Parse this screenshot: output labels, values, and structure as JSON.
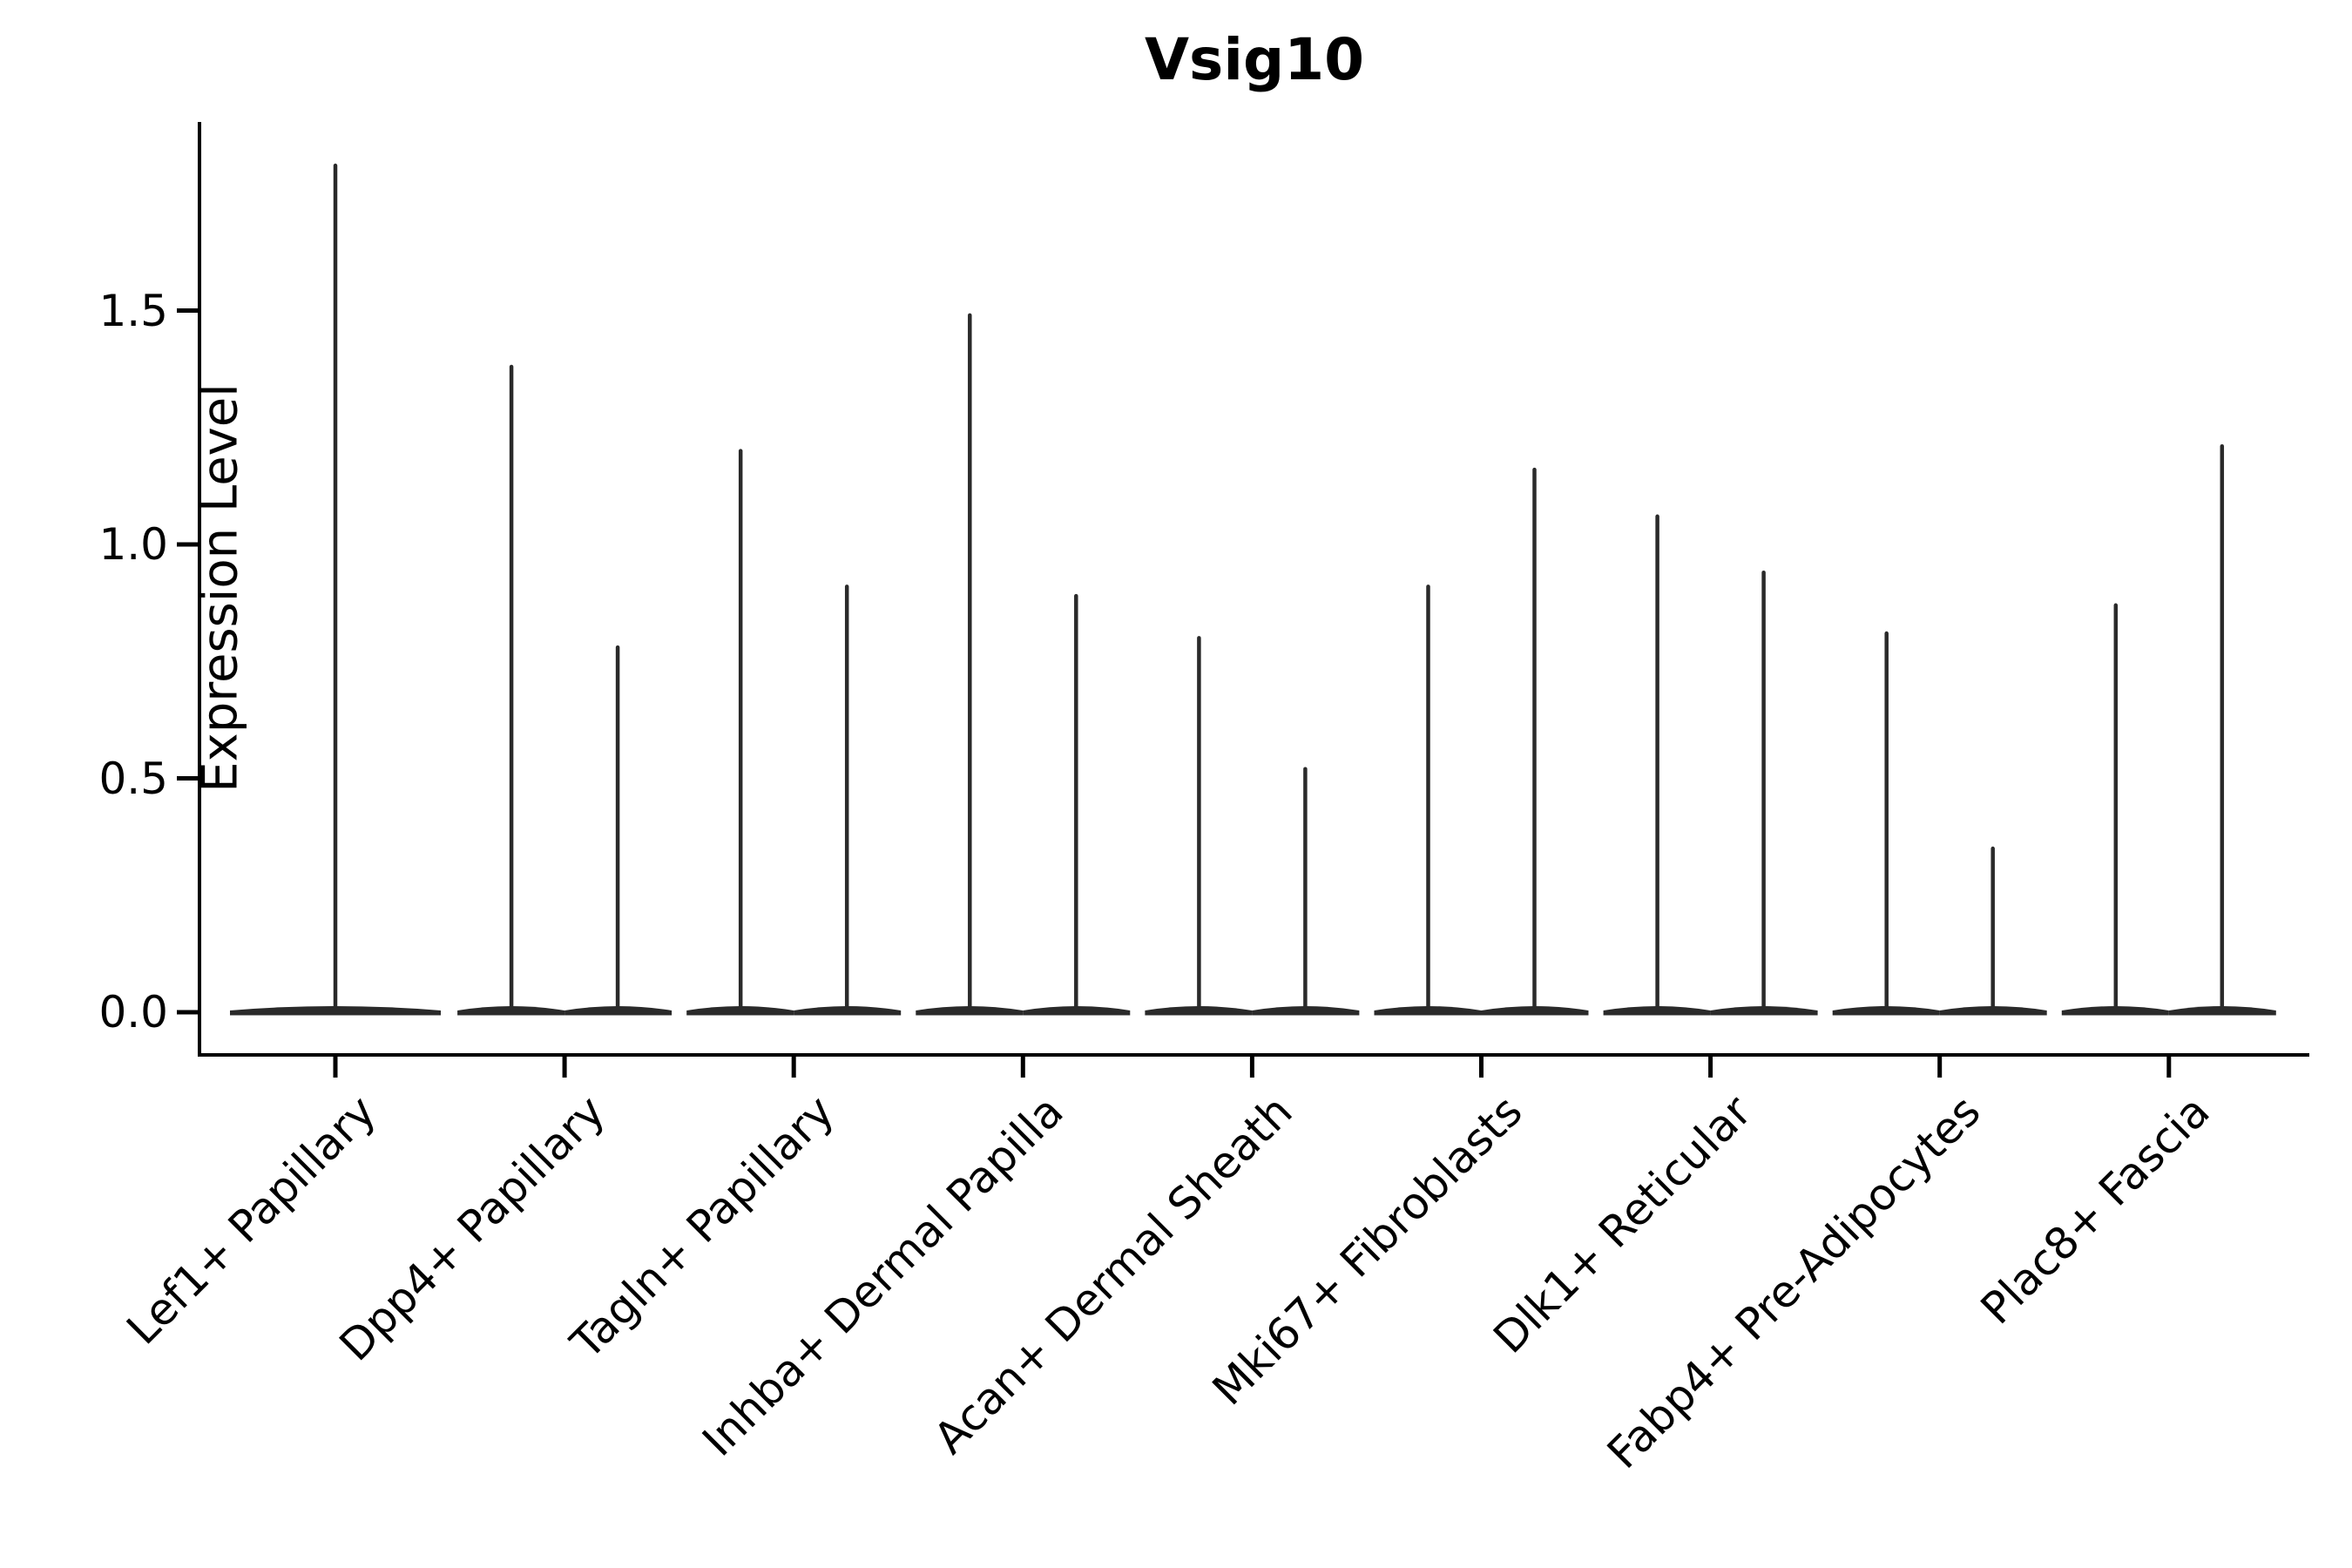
{
  "title": "Vsig10",
  "y_axis": {
    "label": "Expression Level",
    "tick_labels": [
      "0.0",
      "0.5",
      "1.0",
      "1.5"
    ]
  },
  "chart_data": {
    "type": "violin",
    "title": "Vsig10",
    "ylabel": "Expression Level",
    "xlabel": "",
    "ylim": [
      0,
      1.9
    ],
    "yticks": [
      0.0,
      0.5,
      1.0,
      1.5
    ],
    "grid": false,
    "legend": "none",
    "violin_shape": "nearly all density flat at 0 with a thin spike up to the maximum expression value",
    "categories": [
      "Lef1+ Papillary",
      "Dpp4+ Papillary",
      "Tagln+ Papillary",
      "Inhba+ Dermal Papilla",
      "Acan+ Dermal Sheath",
      "Mki67+ Fibroblasts",
      "Dlk1+ Reticular",
      "Fabp4+ Pre-Adipocytes",
      "Plac8+ Fascia"
    ],
    "violins": [
      {
        "category": "Lef1+ Papillary",
        "spike_max_values": [
          1.81
        ]
      },
      {
        "category": "Dpp4+ Papillary",
        "spike_max_values": [
          1.38,
          0.78
        ]
      },
      {
        "category": "Tagln+ Papillary",
        "spike_max_values": [
          1.2,
          0.91
        ]
      },
      {
        "category": "Inhba+ Dermal Papilla",
        "spike_max_values": [
          1.49,
          0.89
        ]
      },
      {
        "category": "Acan+ Dermal Sheath",
        "spike_max_values": [
          0.8,
          0.52
        ]
      },
      {
        "category": "Mki67+ Fibroblasts",
        "spike_max_values": [
          0.91,
          1.16
        ]
      },
      {
        "category": "Dlk1+ Reticular",
        "spike_max_values": [
          1.06,
          0.94
        ]
      },
      {
        "category": "Fabp4+ Pre-Adipocytes",
        "spike_max_values": [
          0.81,
          0.35
        ]
      },
      {
        "category": "Plac8+ Fascia",
        "spike_max_values": [
          0.87,
          1.21
        ]
      }
    ],
    "colors": {
      "violin": "#2a2a2a",
      "axis": "#000000",
      "text": "#000000",
      "background": "#ffffff"
    }
  }
}
